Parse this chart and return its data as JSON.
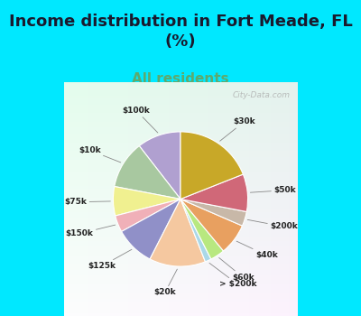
{
  "title": "Income distribution in Fort Meade, FL\n(%)",
  "subtitle": "All residents",
  "title_color": "#1a1a2e",
  "subtitle_color": "#5caa6f",
  "background_cyan": "#00e8ff",
  "watermark": "City-Data.com",
  "labels": [
    "$100k",
    "$10k",
    "$75k",
    "$150k",
    "$125k",
    "$20k",
    "> $200k",
    "$60k",
    "$40k",
    "$200k",
    "$50k",
    "$30k"
  ],
  "values": [
    10.5,
    11.5,
    7.0,
    4.0,
    9.5,
    13.5,
    1.5,
    3.5,
    7.5,
    3.5,
    9.0,
    19.0
  ],
  "colors": [
    "#b0a0d0",
    "#a8c8a0",
    "#f0f090",
    "#f0b0b8",
    "#9090c8",
    "#f5c8a0",
    "#aad8e8",
    "#b8e880",
    "#e8a060",
    "#c8b8a8",
    "#d06878",
    "#c8a828"
  ],
  "startangle": 90,
  "figsize": [
    4.0,
    3.5
  ],
  "dpi": 100,
  "title_fontsize": 13,
  "subtitle_fontsize": 11
}
